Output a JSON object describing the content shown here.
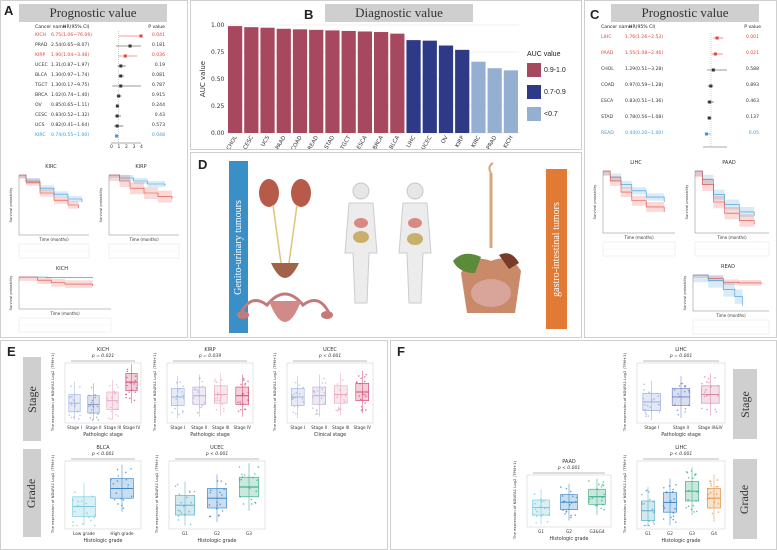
{
  "labels": {
    "A": "A",
    "B": "B",
    "C": "C",
    "D": "D",
    "E": "E",
    "F": "F"
  },
  "panelA": {
    "banner": "Prognostic value",
    "header": {
      "cancer": "Cancer name",
      "hr": "HR(95% CI)",
      "p": "P value"
    },
    "rows": [
      {
        "name": "KICH",
        "hr": "6.75(1.06~76.06)",
        "p": "0.041",
        "color": "#e0463c"
      },
      {
        "name": "PRAD",
        "hr": "2.54(0.65~8.07)",
        "p": "0.181",
        "color": "#333333"
      },
      {
        "name": "KIRP",
        "hr": "1.90(1.04~3.48)",
        "p": "0.036",
        "color": "#e0463c"
      },
      {
        "name": "UCEC",
        "hr": "1.31(0.87~1.97)",
        "p": "0.19",
        "color": "#333333"
      },
      {
        "name": "BLCA",
        "hr": "1.30(0.97~1.74)",
        "p": "0.081",
        "color": "#333333"
      },
      {
        "name": "TGCT",
        "hr": "1.30(0.17~9.75)",
        "p": "0.787",
        "color": "#333333"
      },
      {
        "name": "BRCA",
        "hr": "1.02(0.74~1.40)",
        "p": "0.915",
        "color": "#333333"
      },
      {
        "name": "OV",
        "hr": "0.85(0.65~1.11)",
        "p": "0.244",
        "color": "#333333"
      },
      {
        "name": "CESC",
        "hr": "0.83(0.52~1.32)",
        "p": "0.43",
        "color": "#333333"
      },
      {
        "name": "UCS",
        "hr": "0.82(0.41~1.64)",
        "p": "0.573",
        "color": "#333333"
      },
      {
        "name": "KIRC",
        "hr": "0.74(0.55~1.00)",
        "p": "0.048",
        "color": "#3a9ad9"
      }
    ],
    "axis_ticks": [
      "0",
      "1",
      "2",
      "3",
      "4"
    ],
    "km": [
      {
        "title": "KIRC",
        "xlabel": "Time (months)",
        "ylabel": "Survival probability"
      },
      {
        "title": "KIRP",
        "xlabel": "Time (months)",
        "ylabel": "Survival probability"
      },
      {
        "title": "KICH",
        "xlabel": "Time (months)",
        "ylabel": "Survival probability"
      }
    ]
  },
  "panelB": {
    "banner": "Diagnostic value",
    "ylabel": "AUC value",
    "legend_title": "AUC value",
    "legend": [
      {
        "label": "0.9-1.0",
        "color": "#a8485f"
      },
      {
        "label": "0.7-0.9",
        "color": "#2e3a87"
      },
      {
        "label": "<0.7",
        "color": "#94afd1"
      }
    ]
  },
  "chart_data": {
    "type": "bar",
    "ylabel": "AUC value",
    "ylim": [
      0,
      1.0
    ],
    "yticks": [
      "0.00",
      "0.25",
      "0.50",
      "0.75",
      "1.00"
    ],
    "categories": [
      "CHOL",
      "CESC",
      "UCS",
      "PAAD",
      "COAD",
      "READ",
      "STAD",
      "TGCT",
      "ESCA",
      "BRCA",
      "BLCA",
      "LIHC",
      "UCEC",
      "OV",
      "KIRP",
      "KIRC",
      "PRAD",
      "KICH"
    ],
    "values": [
      0.99,
      0.98,
      0.975,
      0.965,
      0.96,
      0.955,
      0.95,
      0.945,
      0.94,
      0.935,
      0.92,
      0.86,
      0.855,
      0.81,
      0.77,
      0.66,
      0.6,
      0.58
    ],
    "colors": [
      "#a8485f",
      "#a8485f",
      "#a8485f",
      "#a8485f",
      "#a8485f",
      "#a8485f",
      "#a8485f",
      "#a8485f",
      "#a8485f",
      "#a8485f",
      "#a8485f",
      "#2e3a87",
      "#2e3a87",
      "#2e3a87",
      "#2e3a87",
      "#94afd1",
      "#94afd1",
      "#94afd1"
    ]
  },
  "panelC": {
    "banner": "Prognostic value",
    "header": {
      "cancer": "Cancer name",
      "hr": "HR(95% CI)",
      "p": "P value"
    },
    "rows": [
      {
        "name": "LIHC",
        "hr": "1.76(1.26~2.53)",
        "p": "0.001",
        "color": "#e0463c"
      },
      {
        "name": "PAAD",
        "hr": "1.55(1.08~2.46)",
        "p": "0.021",
        "color": "#e0463c"
      },
      {
        "name": "CHOL",
        "hr": "1.29(0.51~3.28)",
        "p": "0.588",
        "color": "#333333"
      },
      {
        "name": "COAD",
        "hr": "0.97(0.59~1.28)",
        "p": "0.893",
        "color": "#333333"
      },
      {
        "name": "ESCA",
        "hr": "0.83(0.51~1.36)",
        "p": "0.463",
        "color": "#333333"
      },
      {
        "name": "STAD",
        "hr": "0.78(0.56~1.08)",
        "p": "0.137",
        "color": "#333333"
      },
      {
        "name": "READ",
        "hr": "0.44(0.20~1.00)",
        "p": "0.05",
        "color": "#3a9ad9"
      }
    ],
    "km": [
      {
        "title": "LIHC",
        "xlabel": "Time (months)",
        "ylabel": "Survival probability"
      },
      {
        "title": "PAAD",
        "xlabel": "Time (months)",
        "ylabel": "Survival probability"
      },
      {
        "title": "READ",
        "xlabel": "Time (months)",
        "ylabel": "Survival probability"
      }
    ]
  },
  "panelD": {
    "left_tab": "Genito-urinary tumours",
    "right_tab": "gastro-intestinal tumors"
  },
  "panelE": {
    "stage_tab": "Stage",
    "grade_tab": "Grade",
    "ylabel": "The expression of NDUFA1 Log2 (TPM+1)",
    "plots": [
      {
        "title": "KICH",
        "p": "p = 0.021",
        "xlabel": "Pathologic stage",
        "cats": [
          "Stage I",
          "Stage II",
          "Stage III",
          "Stage IV"
        ]
      },
      {
        "title": "KIRP",
        "p": "p = 0.039",
        "xlabel": "Pathologic stage",
        "cats": [
          "Stage I",
          "Stage II",
          "Stage III",
          "Stage IV"
        ]
      },
      {
        "title": "UCEC",
        "p": "p < 0.001",
        "xlabel": "Clinical stage",
        "cats": [
          "Stage I",
          "Stage II",
          "Stage III",
          "Stage IV"
        ]
      },
      {
        "title": "BLCA",
        "p": "p < 0.001",
        "xlabel": "Histologic grade",
        "cats": [
          "Low grade",
          "High grade"
        ]
      },
      {
        "title": "UCEC",
        "p": "p < 0.001",
        "xlabel": "Histologic grade",
        "cats": [
          "G1",
          "G2",
          "G3"
        ]
      }
    ]
  },
  "panelF": {
    "stage_tab": "Stage",
    "grade_tab": "Grade",
    "plots": [
      {
        "title": "LIHC",
        "p": "p = 0.001",
        "xlabel": "Pathologic stage",
        "cats": [
          "Stage I",
          "Stage II",
          "Stage III&IV"
        ]
      },
      {
        "title": "PAAD",
        "p": "p < 0.001",
        "xlabel": "Histologic grade",
        "cats": [
          "G1",
          "G2",
          "G3&G4"
        ]
      },
      {
        "title": "LIHC",
        "p": "p < 0.001",
        "xlabel": "Histologic grade",
        "cats": [
          "G1",
          "G2",
          "G3",
          "G4"
        ]
      }
    ]
  }
}
